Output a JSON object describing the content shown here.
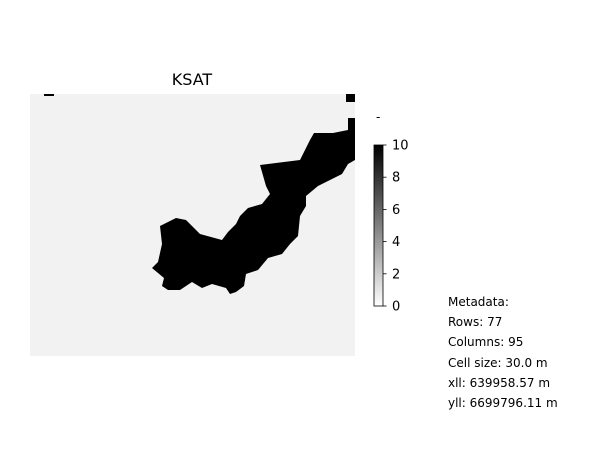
{
  "chart_data": {
    "type": "heatmap",
    "title": "KSAT",
    "xlabel": "",
    "ylabel": "",
    "colormap": "gray_r",
    "background_color": "#f2f2f2",
    "mask_color": "#000000",
    "colorbar": {
      "min": 0,
      "max": 10,
      "ticks": [
        0,
        2,
        4,
        6,
        8,
        10
      ],
      "tick_labels": [
        "0",
        "2",
        "4",
        "6",
        "8",
        "10"
      ]
    },
    "grid": false,
    "extra_mark": "-"
  },
  "metadata": {
    "heading": "Metadata:",
    "lines": [
      "Rows: 77",
      "Columns: 95",
      "Cell size: 30.0 m",
      "xll: 639958.57 m",
      "yll: 6699796.11 m"
    ]
  }
}
